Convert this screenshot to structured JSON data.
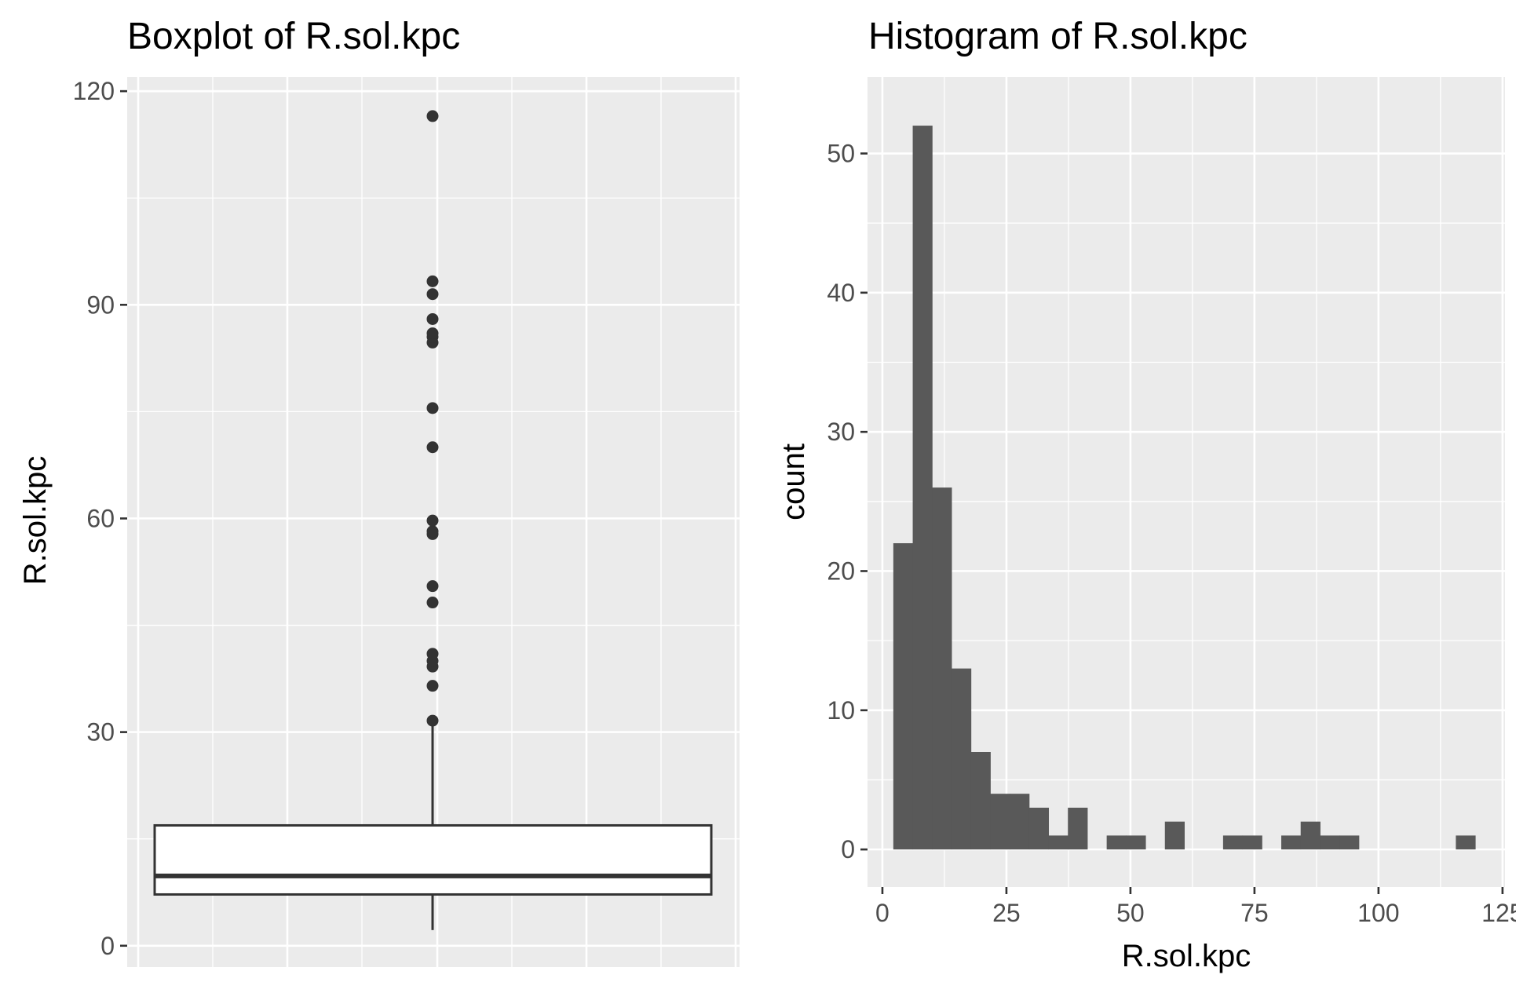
{
  "chart_data": [
    {
      "type": "boxplot",
      "title": "Boxplot of R.sol.kpc",
      "xlabel": "",
      "ylabel": "R.sol.kpc",
      "ylim": [
        -3,
        122
      ],
      "yticks": [
        "0",
        "30",
        "60",
        "90",
        "120"
      ],
      "ytick_values": [
        0,
        30,
        60,
        90,
        120
      ],
      "box": {
        "min": 2.2,
        "q1": 7.2,
        "median": 9.8,
        "q3": 16.9,
        "whisker_high": 31.0
      },
      "outliers": [
        31.6,
        36.5,
        39.2,
        40.0,
        41.0,
        48.2,
        50.5,
        57.8,
        58.2,
        59.7,
        70.0,
        75.5,
        84.7,
        85.5,
        86.0,
        88.0,
        91.5,
        93.3,
        116.5
      ],
      "grid": true,
      "colors": {
        "panel": "#ebebeb",
        "grid": "#ffffff",
        "box_fill": "#ffffff",
        "line": "#333333",
        "point": "#333333"
      }
    },
    {
      "type": "histogram",
      "title": "Histogram of R.sol.kpc",
      "xlabel": "R.sol.kpc",
      "ylabel": "count",
      "xlim": [
        -3,
        125.5
      ],
      "ylim": [
        -2.7,
        55.5
      ],
      "xticks": [
        "0",
        "25",
        "50",
        "75",
        "100",
        "125"
      ],
      "xtick_values": [
        0,
        25,
        50,
        75,
        100,
        125
      ],
      "yticks": [
        "0",
        "10",
        "20",
        "30",
        "40",
        "50"
      ],
      "ytick_values": [
        0,
        10,
        20,
        30,
        40,
        50
      ],
      "bin_start": 2.2,
      "bin_width": 3.91,
      "counts": [
        22,
        52,
        26,
        13,
        7,
        4,
        4,
        3,
        1,
        3,
        0,
        1,
        1,
        0,
        2,
        0,
        0,
        1,
        1,
        0,
        1,
        2,
        1,
        1,
        0,
        0,
        0,
        0,
        0,
        1
      ],
      "grid": true,
      "colors": {
        "panel": "#ebebeb",
        "grid": "#ffffff",
        "bar": "#595959",
        "tick": "#333333"
      }
    }
  ]
}
